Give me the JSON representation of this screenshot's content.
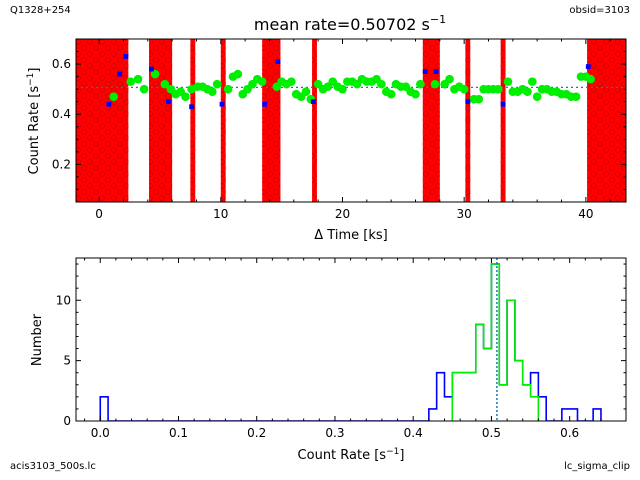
{
  "header": {
    "source_name": "Q1328+254",
    "obsid": "obsid=3103",
    "title_prefix": "mean rate=0.50702 s",
    "title_exp": "−1"
  },
  "footer": {
    "file_name": "acis3103_500s.lc",
    "tool_name": "lc_sigma_clip"
  },
  "colors": {
    "good": "#00ee00",
    "clipped": "#0000ff",
    "bad_interval": "#ff0000",
    "mean_line": "#1f77b4"
  },
  "chart_data": [
    {
      "type": "scatter",
      "title": "mean rate=0.50702 s⁻¹",
      "xlabel": "Δ Time [ks]",
      "ylabel": "Count Rate [s⁻¹]",
      "xlim": [
        -1.9,
        43.3
      ],
      "ylim": [
        0.05,
        0.7
      ],
      "xticks": [
        0,
        10,
        20,
        30,
        40
      ],
      "yticks": [
        0.2,
        0.4,
        0.6
      ],
      "mean_rate": 0.50702,
      "excluded_intervals": [
        [
          -1.9,
          2.4
        ],
        [
          4.1,
          6.0
        ],
        [
          7.5,
          7.9
        ],
        [
          10.0,
          10.4
        ],
        [
          13.4,
          14.9
        ],
        [
          17.5,
          17.9
        ],
        [
          26.6,
          28.0
        ],
        [
          30.1,
          30.5
        ],
        [
          33.0,
          33.4
        ],
        [
          40.1,
          43.3
        ]
      ],
      "series": [
        {
          "name": "",
          "role": "good",
          "x": [
            1.2,
            2.6,
            3.2,
            3.7,
            4.6,
            5.4,
            5.9,
            6.3,
            6.7,
            7.1,
            7.6,
            8.1,
            8.5,
            8.9,
            9.3,
            9.7,
            10.6,
            11.0,
            11.4,
            11.8,
            12.2,
            12.6,
            13.0,
            13.4,
            14.6,
            15.0,
            15.4,
            15.8,
            16.2,
            16.6,
            17.0,
            17.4,
            18.0,
            18.4,
            18.8,
            19.2,
            19.6,
            20.0,
            20.4,
            20.8,
            21.2,
            21.6,
            22.0,
            22.4,
            22.8,
            23.2,
            23.6,
            24.0,
            24.4,
            24.8,
            25.2,
            25.6,
            26.0,
            26.4,
            27.6,
            28.4,
            28.8,
            29.2,
            29.6,
            30.0,
            30.8,
            31.2,
            31.6,
            32.0,
            32.4,
            32.8,
            33.6,
            34.0,
            34.4,
            34.8,
            35.2,
            35.6,
            36.0,
            36.4,
            36.8,
            37.2,
            37.6,
            38.0,
            38.4,
            38.8,
            39.2,
            39.6,
            40.0,
            40.4
          ],
          "y": [
            0.47,
            0.53,
            0.54,
            0.5,
            0.56,
            0.52,
            0.5,
            0.48,
            0.49,
            0.47,
            0.5,
            0.51,
            0.51,
            0.5,
            0.49,
            0.52,
            0.5,
            0.55,
            0.56,
            0.48,
            0.5,
            0.52,
            0.54,
            0.53,
            0.51,
            0.53,
            0.52,
            0.53,
            0.48,
            0.47,
            0.49,
            0.46,
            0.52,
            0.5,
            0.51,
            0.53,
            0.51,
            0.5,
            0.53,
            0.53,
            0.52,
            0.54,
            0.53,
            0.53,
            0.54,
            0.52,
            0.49,
            0.48,
            0.52,
            0.51,
            0.51,
            0.49,
            0.48,
            0.52,
            0.52,
            0.52,
            0.54,
            0.5,
            0.51,
            0.5,
            0.46,
            0.46,
            0.5,
            0.5,
            0.5,
            0.5,
            0.53,
            0.49,
            0.49,
            0.5,
            0.49,
            0.53,
            0.47,
            0.5,
            0.5,
            0.49,
            0.49,
            0.48,
            0.48,
            0.47,
            0.47,
            0.55,
            0.55,
            0.54
          ]
        },
        {
          "name": "",
          "role": "clipped",
          "x": [
            0.8,
            1.7,
            2.2,
            4.3,
            5.7,
            7.6,
            10.1,
            13.6,
            14.7,
            17.6,
            26.8,
            27.7,
            30.3,
            33.2,
            40.2
          ],
          "y": [
            0.44,
            0.56,
            0.63,
            0.58,
            0.45,
            0.43,
            0.44,
            0.44,
            0.61,
            0.45,
            0.57,
            0.57,
            0.45,
            0.44,
            0.59
          ]
        }
      ]
    },
    {
      "type": "histogram",
      "xlabel": "Count Rate [s⁻¹]",
      "ylabel": "Number",
      "xlim": [
        -0.031,
        0.672
      ],
      "ylim": [
        0,
        13.5
      ],
      "xticks": [
        0.0,
        0.1,
        0.2,
        0.3,
        0.4,
        0.5,
        0.6
      ],
      "yticks": [
        0,
        5,
        10
      ],
      "mean_rate": 0.50702,
      "series": [
        {
          "name": "",
          "role": "all",
          "edges": [
            0.0,
            0.01,
            0.42,
            0.43,
            0.44,
            0.45,
            0.46,
            0.47,
            0.48,
            0.49,
            0.5,
            0.51,
            0.52,
            0.53,
            0.54,
            0.55,
            0.56,
            0.57,
            0.58,
            0.59,
            0.6,
            0.61,
            0.62,
            0.63,
            0.64
          ],
          "counts": [
            2,
            0,
            1,
            4,
            2,
            4,
            4,
            4,
            8,
            6,
            13,
            3,
            10,
            5,
            3,
            4,
            2,
            0,
            0,
            1,
            1,
            0,
            0,
            1
          ]
        },
        {
          "name": "",
          "role": "good",
          "edges": [
            0.45,
            0.46,
            0.47,
            0.48,
            0.49,
            0.5,
            0.51,
            0.52,
            0.53,
            0.54,
            0.55,
            0.56
          ],
          "counts": [
            4,
            4,
            4,
            8,
            6,
            13,
            3,
            10,
            5,
            3,
            2
          ]
        }
      ]
    }
  ]
}
